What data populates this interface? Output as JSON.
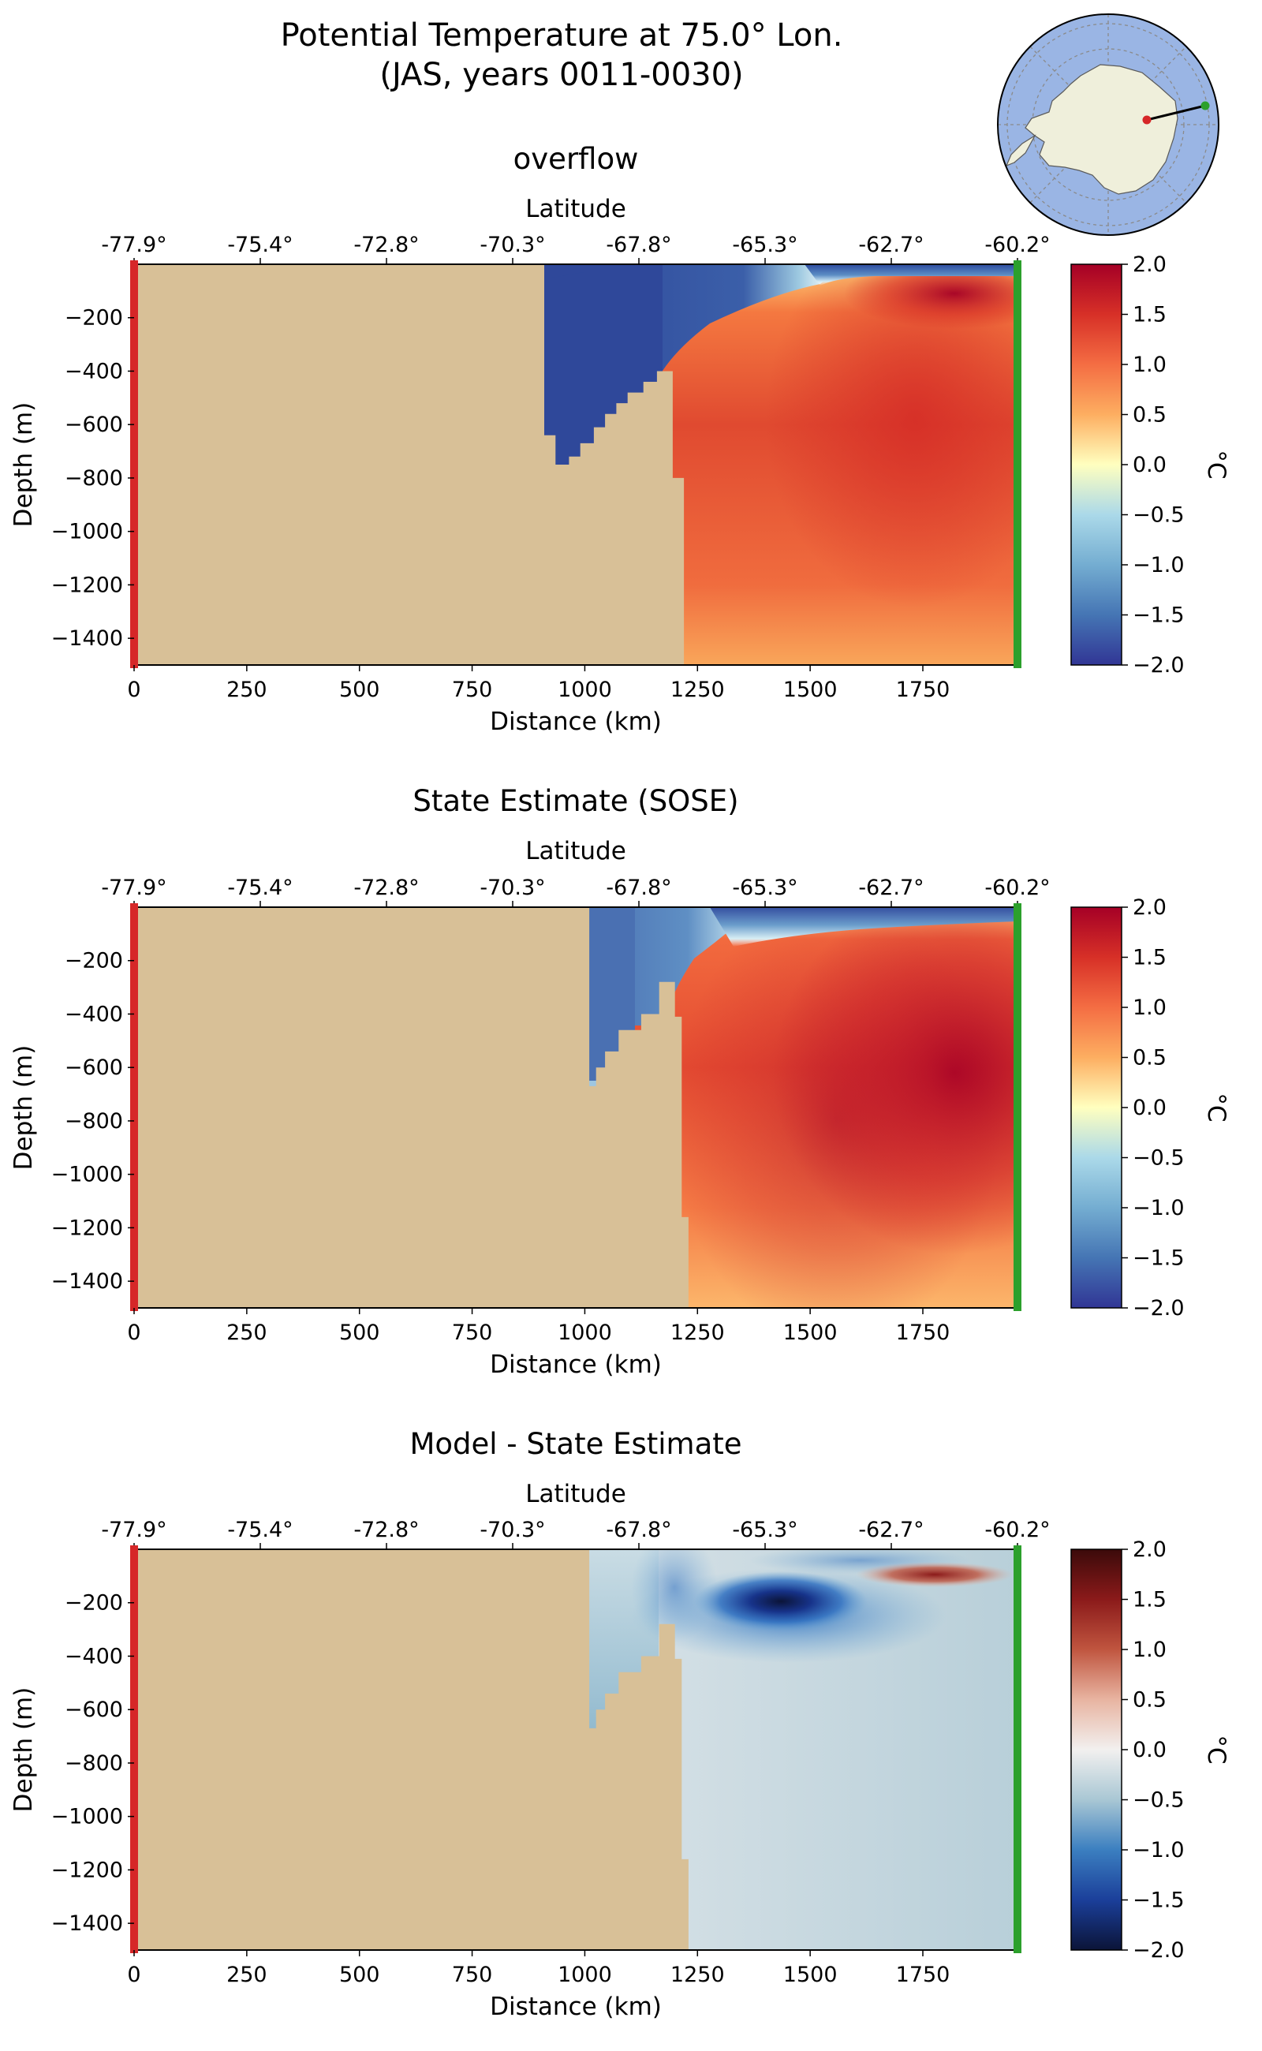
{
  "figure": {
    "title_line1": "Potential Temperature at 75.0° Lon.",
    "title_line2": "(JAS, years 0011-0030)"
  },
  "chart_data": [
    {
      "type": "heatmap",
      "title": "overflow",
      "xlabel": "Distance (km)",
      "ylabel": "Depth (m)",
      "secondary_xlabel": "Latitude",
      "xlim": [
        0,
        1960
      ],
      "ylim": [
        -1500,
        0
      ],
      "xticks": [
        0,
        250,
        500,
        750,
        1000,
        1250,
        1500,
        1750
      ],
      "yticks": [
        -200,
        -400,
        -600,
        -800,
        -1000,
        -1200,
        -1400
      ],
      "lat_ticks": [
        "-77.9°",
        "-75.4°",
        "-72.8°",
        "-70.3°",
        "-67.8°",
        "-65.3°",
        "-62.7°",
        "-60.2°"
      ],
      "colorbar": {
        "label": "°C",
        "min": -2.0,
        "max": 2.0,
        "ticks": [
          "2.0",
          "1.5",
          "1.0",
          "0.5",
          "0.0",
          "−0.5",
          "−1.0",
          "−1.5",
          "−2.0"
        ],
        "colormap": "RdYlBu_r"
      },
      "bathymetry": [
        [
          910,
          0
        ],
        [
          910,
          640
        ],
        [
          935,
          640
        ],
        [
          935,
          750
        ],
        [
          965,
          750
        ],
        [
          965,
          720
        ],
        [
          990,
          720
        ],
        [
          990,
          670
        ],
        [
          1020,
          670
        ],
        [
          1020,
          610
        ],
        [
          1045,
          610
        ],
        [
          1045,
          560
        ],
        [
          1070,
          560
        ],
        [
          1070,
          520
        ],
        [
          1095,
          520
        ],
        [
          1095,
          480
        ],
        [
          1130,
          480
        ],
        [
          1130,
          440
        ],
        [
          1160,
          440
        ],
        [
          1160,
          400
        ],
        [
          1195,
          400
        ],
        [
          1195,
          800
        ],
        [
          1220,
          800
        ],
        [
          1220,
          1500
        ]
      ],
      "field_notes": [
        "cold water (-2 °C) over shelf 910-1100 km, surface to 750 m",
        "warm core up to 2 °C near 1800 km at 100 m depth",
        "interior 1.2-1.6 °C"
      ],
      "edge_markers": {
        "left": "#d62728",
        "right": "#2ca02c"
      }
    },
    {
      "type": "heatmap",
      "title": "State Estimate (SOSE)",
      "xlabel": "Distance (km)",
      "ylabel": "Depth (m)",
      "secondary_xlabel": "Latitude",
      "xlim": [
        0,
        1960
      ],
      "ylim": [
        -1500,
        0
      ],
      "xticks": [
        0,
        250,
        500,
        750,
        1000,
        1250,
        1500,
        1750
      ],
      "yticks": [
        -200,
        -400,
        -600,
        -800,
        -1000,
        -1200,
        -1400
      ],
      "lat_ticks": [
        "-77.9°",
        "-75.4°",
        "-72.8°",
        "-70.3°",
        "-67.8°",
        "-65.3°",
        "-62.7°",
        "-60.2°"
      ],
      "colorbar": {
        "label": "°C",
        "min": -2.0,
        "max": 2.0,
        "ticks": [
          "2.0",
          "1.5",
          "1.0",
          "0.5",
          "0.0",
          "−0.5",
          "−1.0",
          "−1.5",
          "−2.0"
        ],
        "colormap": "RdYlBu_r"
      },
      "bathymetry": [
        [
          1010,
          0
        ],
        [
          1010,
          670
        ],
        [
          1025,
          670
        ],
        [
          1025,
          600
        ],
        [
          1045,
          600
        ],
        [
          1045,
          540
        ],
        [
          1075,
          540
        ],
        [
          1075,
          460
        ],
        [
          1125,
          460
        ],
        [
          1125,
          400
        ],
        [
          1165,
          400
        ],
        [
          1165,
          280
        ],
        [
          1200,
          280
        ],
        [
          1200,
          410
        ],
        [
          1215,
          410
        ],
        [
          1215,
          1160
        ],
        [
          1230,
          1160
        ],
        [
          1230,
          1500
        ]
      ],
      "field_notes": [
        "cold water near surface 1010-1150 km",
        "warm core up to 2 °C near 1800 km at 400-600 m depth",
        "surface cold layer ~ -1.5 °C to 60 m"
      ],
      "edge_markers": {
        "left": "#d62728",
        "right": "#2ca02c"
      }
    },
    {
      "type": "heatmap",
      "title": "Model - State Estimate",
      "xlabel": "Distance (km)",
      "ylabel": "Depth (m)",
      "secondary_xlabel": "Latitude",
      "xlim": [
        0,
        1960
      ],
      "ylim": [
        -1500,
        0
      ],
      "xticks": [
        0,
        250,
        500,
        750,
        1000,
        1250,
        1500,
        1750
      ],
      "yticks": [
        -200,
        -400,
        -600,
        -800,
        -1000,
        -1200,
        -1400
      ],
      "lat_ticks": [
        "-77.9°",
        "-75.4°",
        "-72.8°",
        "-70.3°",
        "-67.8°",
        "-65.3°",
        "-62.7°",
        "-60.2°"
      ],
      "colorbar": {
        "label": "°C",
        "min": -2.0,
        "max": 2.0,
        "ticks": [
          "2.0",
          "1.5",
          "1.0",
          "0.5",
          "0.0",
          "−0.5",
          "−1.0",
          "−1.5",
          "−2.0"
        ],
        "colormap": "RdBu_r"
      },
      "bathymetry": [
        [
          1010,
          0
        ],
        [
          1010,
          670
        ],
        [
          1025,
          670
        ],
        [
          1025,
          600
        ],
        [
          1045,
          600
        ],
        [
          1045,
          540
        ],
        [
          1075,
          540
        ],
        [
          1075,
          460
        ],
        [
          1125,
          460
        ],
        [
          1125,
          400
        ],
        [
          1165,
          400
        ],
        [
          1165,
          280
        ],
        [
          1200,
          280
        ],
        [
          1200,
          410
        ],
        [
          1215,
          410
        ],
        [
          1215,
          1160
        ],
        [
          1230,
          1160
        ],
        [
          1230,
          1500
        ]
      ],
      "field_notes": [
        "difference minimum about -2.0 °C near 1400 km at 150 m depth",
        "difference maximum about +1.5 °C near 1800 km at 90 m depth",
        "deep interior near -0.3 °C"
      ],
      "edge_markers": {
        "left": "#d62728",
        "right": "#2ca02c"
      }
    }
  ],
  "inset_map": {
    "region": "Antarctica",
    "markers": {
      "start": "#d62728",
      "end": "#2ca02c"
    },
    "colors": {
      "ocean": "#9ab5e4",
      "land": "#efefdb"
    }
  },
  "colors": {
    "bathymetry": "#d8c097",
    "left_marker": "#d62728",
    "right_marker": "#2ca02c"
  }
}
